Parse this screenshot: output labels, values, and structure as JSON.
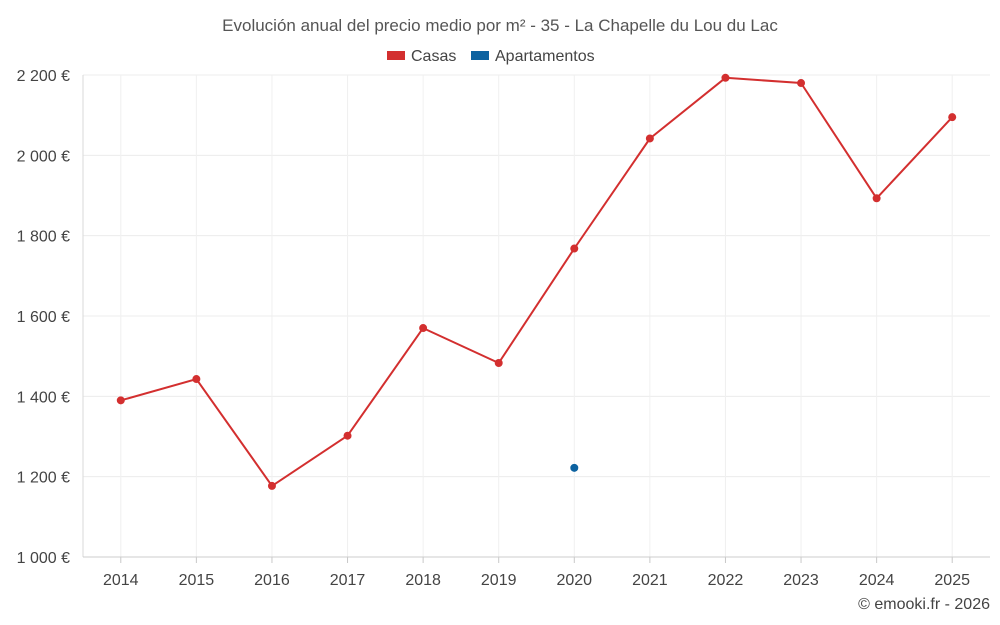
{
  "chart_data": {
    "type": "line",
    "title": "Evolución anual del precio medio por m² - 35 - La Chapelle du Lou du Lac",
    "categories": [
      "2014",
      "2015",
      "2016",
      "2017",
      "2018",
      "2019",
      "2020",
      "2021",
      "2022",
      "2023",
      "2024",
      "2025"
    ],
    "y_tick_labels": [
      "1 000 €",
      "1 200 €",
      "1 400 €",
      "1 600 €",
      "1 800 €",
      "2 000 €",
      "2 200 €"
    ],
    "y_ticks": [
      1000,
      1200,
      1400,
      1600,
      1800,
      2000,
      2200
    ],
    "ylim": [
      1000,
      2200
    ],
    "xlabel": "",
    "ylabel": "",
    "grid": true,
    "legend_position": "top-center",
    "series": [
      {
        "name": "Casas",
        "color": "#d32f2f",
        "values": [
          1390,
          1443,
          1177,
          1302,
          1570,
          1483,
          1768,
          2042,
          2193,
          2180,
          1893,
          2095
        ]
      },
      {
        "name": "Apartamentos",
        "color": "#0d62a0",
        "values": [
          null,
          null,
          null,
          null,
          null,
          null,
          1222,
          null,
          null,
          null,
          null,
          null
        ]
      }
    ],
    "credit": "© emooki.fr - 2026"
  }
}
